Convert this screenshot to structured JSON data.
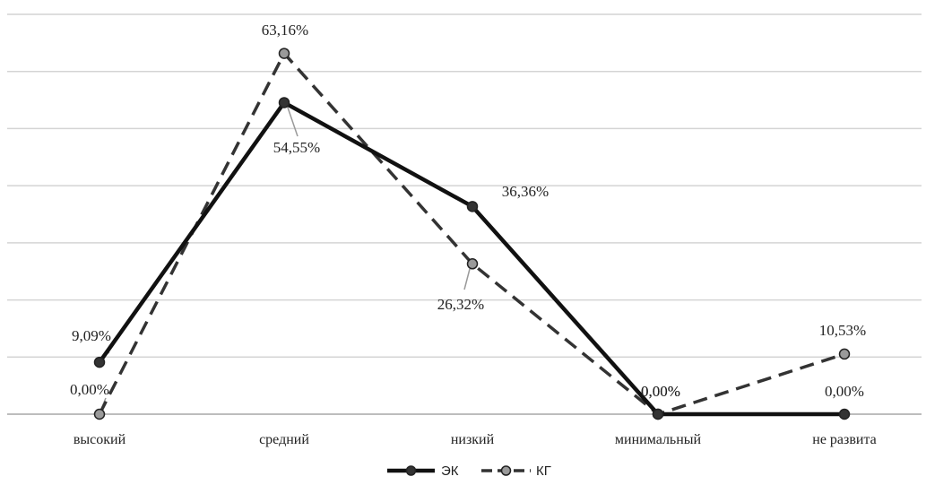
{
  "chart_data": {
    "type": "line",
    "categories": [
      "высокий",
      "средний",
      "низкий",
      "минимальный",
      "не развита"
    ],
    "ylim": [
      0,
      70
    ],
    "grid": true,
    "legend_position": "bottom",
    "series": [
      {
        "name": "ЭК",
        "values": [
          9.09,
          54.55,
          36.36,
          0.0,
          0.0
        ],
        "labels": [
          "9,09%",
          "54,55%",
          "36,36%",
          "0,00%",
          "0,00%"
        ],
        "style": "solid",
        "color": "#111111",
        "marker_color": "#333333"
      },
      {
        "name": "КГ",
        "values": [
          0.0,
          63.16,
          26.32,
          0.0,
          10.53
        ],
        "labels": [
          "0,00%",
          "63,16%",
          "26,32%",
          "0,00%",
          "10,53%"
        ],
        "style": "dashed",
        "color": "#333333",
        "marker_color": "#9a9a9a"
      }
    ]
  }
}
